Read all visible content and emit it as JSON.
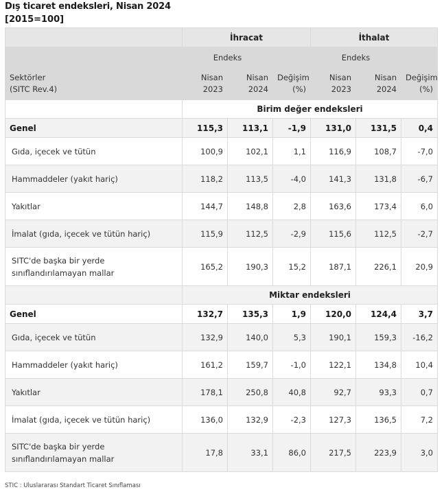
{
  "title": "Dış ticaret endeksleri, Nisan 2024",
  "subtitle": "[2015=100]",
  "header": {
    "groups": [
      "İhracat",
      "İthalat"
    ],
    "subgroup": "Endeks",
    "row_label_line1": "Sektörler",
    "row_label_line2": "(SITC Rev.4)",
    "columns": [
      {
        "line1": "Nisan",
        "line2": "2023"
      },
      {
        "line1": "Nisan",
        "line2": "2024"
      },
      {
        "line1": "Değişim",
        "line2": "(%)"
      },
      {
        "line1": "Nisan",
        "line2": "2023"
      },
      {
        "line1": "Nisan",
        "line2": "2024"
      },
      {
        "line1": "Değişim",
        "line2": "(%)"
      }
    ]
  },
  "sections": [
    {
      "title": "Birim değer endeksleri",
      "total": {
        "label": "Genel",
        "values": [
          "115,3",
          "113,1",
          "-1,9",
          "131,0",
          "131,5",
          "0,4"
        ]
      },
      "rows": [
        {
          "label": "Gıda, içecek ve tütün",
          "values": [
            "100,9",
            "102,1",
            "1,1",
            "116,9",
            "108,7",
            "-7,0"
          ]
        },
        {
          "label": "Hammaddeler (yakıt hariç)",
          "values": [
            "118,2",
            "113,5",
            "-4,0",
            "141,3",
            "131,8",
            "-6,7"
          ]
        },
        {
          "label": "Yakıtlar",
          "values": [
            "144,7",
            "148,8",
            "2,8",
            "163,6",
            "173,4",
            "6,0"
          ]
        },
        {
          "label": "İmalat (gıda, içecek ve tütün hariç)",
          "values": [
            "115,9",
            "112,5",
            "-2,9",
            "115,6",
            "112,5",
            "-2,7"
          ]
        },
        {
          "label": "SITC'de başka bir yerde sınıflandırılamayan mallar",
          "values": [
            "165,2",
            "190,3",
            "15,2",
            "187,1",
            "226,1",
            "20,9"
          ]
        }
      ]
    },
    {
      "title": "Miktar endeksleri",
      "total": {
        "label": "Genel",
        "values": [
          "132,7",
          "135,3",
          "1,9",
          "120,0",
          "124,4",
          "3,7"
        ]
      },
      "rows": [
        {
          "label": "Gıda, içecek ve tütün",
          "values": [
            "132,9",
            "140,0",
            "5,3",
            "190,1",
            "159,3",
            "-16,2"
          ]
        },
        {
          "label": "Hammaddeler (yakıt hariç)",
          "values": [
            "161,2",
            "159,7",
            "-1,0",
            "122,1",
            "134,8",
            "10,4"
          ]
        },
        {
          "label": "Yakıtlar",
          "values": [
            "178,1",
            "250,8",
            "40,8",
            "92,7",
            "93,3",
            "0,7"
          ]
        },
        {
          "label": "İmalat (gıda, içecek ve tütün hariç)",
          "values": [
            "136,0",
            "132,9",
            "-2,3",
            "127,3",
            "136,5",
            "7,2"
          ]
        },
        {
          "label": "SITC'de başka bir yerde sınıflandırılamayan mallar",
          "values": [
            "17,8",
            "33,1",
            "86,0",
            "217,5",
            "223,9",
            "3,0"
          ]
        }
      ]
    }
  ],
  "footnote": "STIC : Uluslararası Standart Ticaret Sınıflaması"
}
